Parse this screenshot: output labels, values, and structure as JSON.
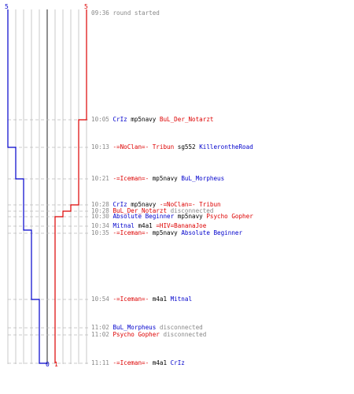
{
  "colors": {
    "blue_team": "#0000cc",
    "red_team": "#dd0000",
    "time_text": "#888888",
    "weapon_text": "#000000",
    "grid_line": "#bbbbbb",
    "center_line": "#555555",
    "dash_line": "#bbbbbb"
  },
  "scores": {
    "blue_top": "5",
    "red_top": "5",
    "blue_bottom": "0",
    "red_bottom": "1"
  },
  "events": [
    {
      "time": "09:36",
      "parts": [
        {
          "t": "round started",
          "c": "text"
        }
      ]
    },
    {
      "time": "10:05",
      "parts": [
        {
          "t": "CrIz",
          "c": "blue"
        },
        {
          "t": " mp5navy ",
          "c": "weapon"
        },
        {
          "t": "BuL_Der_Notarzt",
          "c": "red"
        }
      ]
    },
    {
      "time": "10:13",
      "parts": [
        {
          "t": "-=NoClan=- Tribun",
          "c": "red"
        },
        {
          "t": " sg552 ",
          "c": "weapon"
        },
        {
          "t": "KillerontheRoad",
          "c": "blue"
        }
      ]
    },
    {
      "time": "10:21",
      "parts": [
        {
          "t": "-=Iceman=-",
          "c": "red"
        },
        {
          "t": " mp5navy ",
          "c": "weapon"
        },
        {
          "t": "BuL_Morpheus",
          "c": "blue"
        }
      ]
    },
    {
      "time": "10:28",
      "parts": [
        {
          "t": "CrIz",
          "c": "blue"
        },
        {
          "t": " mp5navy ",
          "c": "weapon"
        },
        {
          "t": "-=NoClan=- Tribun",
          "c": "red"
        }
      ]
    },
    {
      "time": "10:28",
      "parts": [
        {
          "t": "BuL_Der_Notarzt",
          "c": "red"
        },
        {
          "t": " disconnected",
          "c": "text"
        }
      ]
    },
    {
      "time": "10:30",
      "parts": [
        {
          "t": "Absolute Beginner",
          "c": "blue"
        },
        {
          "t": " mp5navy ",
          "c": "weapon"
        },
        {
          "t": "Psycho Gopher",
          "c": "red"
        }
      ]
    },
    {
      "time": "10:34",
      "parts": [
        {
          "t": "Mitnal",
          "c": "blue"
        },
        {
          "t": " m4a1 ",
          "c": "weapon"
        },
        {
          "t": "=HIV=BananaJoe",
          "c": "red"
        }
      ]
    },
    {
      "time": "10:35",
      "parts": [
        {
          "t": "-=Iceman=-",
          "c": "red"
        },
        {
          "t": " mp5navy ",
          "c": "weapon"
        },
        {
          "t": "Absolute Beginner",
          "c": "blue"
        }
      ]
    },
    {
      "time": "10:54",
      "parts": [
        {
          "t": "-=Iceman=-",
          "c": "red"
        },
        {
          "t": " m4a1 ",
          "c": "weapon"
        },
        {
          "t": "Mitnal",
          "c": "blue"
        }
      ]
    },
    {
      "time": "11:02",
      "parts": [
        {
          "t": "BuL_Morpheus",
          "c": "blue"
        },
        {
          "t": " disconnected",
          "c": "text"
        }
      ]
    },
    {
      "time": "11:02",
      "parts": [
        {
          "t": "Psycho Gopher",
          "c": "red"
        },
        {
          "t": " disconnected",
          "c": "text"
        }
      ]
    },
    {
      "time": "11:11",
      "parts": [
        {
          "t": "-=Iceman=-",
          "c": "red"
        },
        {
          "t": " m4a1 ",
          "c": "weapon"
        },
        {
          "t": "CrIz",
          "c": "blue"
        }
      ]
    }
  ]
}
